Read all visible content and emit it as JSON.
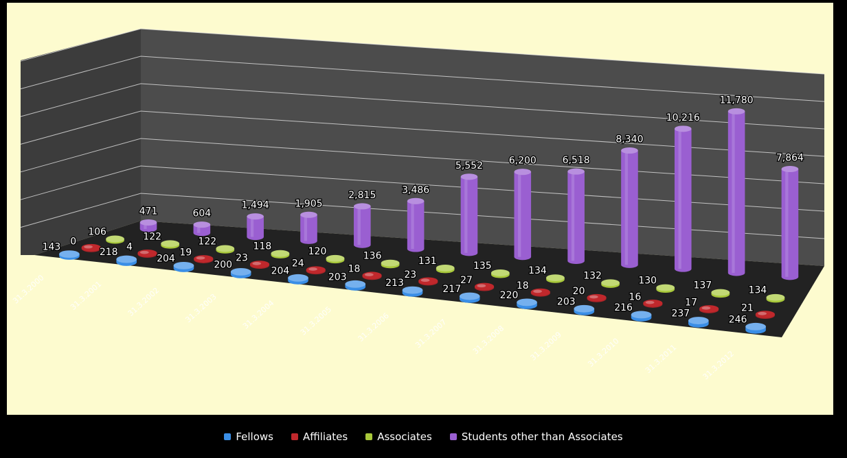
{
  "chart_data": {
    "type": "bar",
    "style": "3d-cylinder",
    "categories": [
      "31.3.2000",
      "31.3.2001",
      "31.3.2002",
      "31.3.2003",
      "31.3.2004",
      "31.3.2005",
      "31.3.2006",
      "31.3.2007",
      "31.3.2008",
      "31.3.2009",
      "31.3.2010",
      "31.3.2011",
      "31.3.2012"
    ],
    "series": [
      {
        "name": "Fellows",
        "color": "#3a8ee6",
        "values": [
          143,
          218,
          204,
          200,
          204,
          203,
          213,
          217,
          220,
          203,
          216,
          237,
          246
        ]
      },
      {
        "name": "Affiliates",
        "color": "#c0282c",
        "values": [
          0,
          4,
          19,
          23,
          24,
          18,
          23,
          27,
          18,
          20,
          16,
          17,
          21
        ]
      },
      {
        "name": "Associates",
        "color": "#a8c83a",
        "values": [
          106,
          122,
          122,
          118,
          120,
          136,
          131,
          135,
          134,
          132,
          130,
          137,
          134
        ]
      },
      {
        "name": "Students other than Associates",
        "color": "#9a5fd1",
        "values": [
          471,
          604,
          1494,
          1905,
          2815,
          3486,
          5552,
          6200,
          6518,
          8340,
          10216,
          11780,
          7864
        ]
      }
    ],
    "data_labels": [
      [
        "143",
        "218",
        "204",
        "200",
        "204",
        "203",
        "213",
        "217",
        "220",
        "203",
        "216",
        "237",
        "246"
      ],
      [
        "0",
        "4",
        "19",
        "23",
        "24",
        "18",
        "23",
        "27",
        "18",
        "20",
        "16",
        "17",
        "21"
      ],
      [
        "106",
        "122",
        "122",
        "118",
        "120",
        "136",
        "131",
        "135",
        "134",
        "132",
        "130",
        "137",
        "134"
      ],
      [
        "471",
        "604",
        "1,494",
        "1,905",
        "2,815",
        "3,486",
        "5,552",
        "6,200",
        "6,518",
        "8,340",
        "10,216",
        "11,780",
        "7,864"
      ]
    ],
    "ylim": [
      0,
      14000
    ],
    "grid": true,
    "legend_position": "bottom",
    "title": "",
    "xlabel": "",
    "ylabel": ""
  },
  "colors": {
    "plot_background": "#fdfbcf",
    "page_background": "#000000",
    "wall": "#3c3c3c",
    "floor": "#222222",
    "gridline": "#d8d8d8"
  }
}
